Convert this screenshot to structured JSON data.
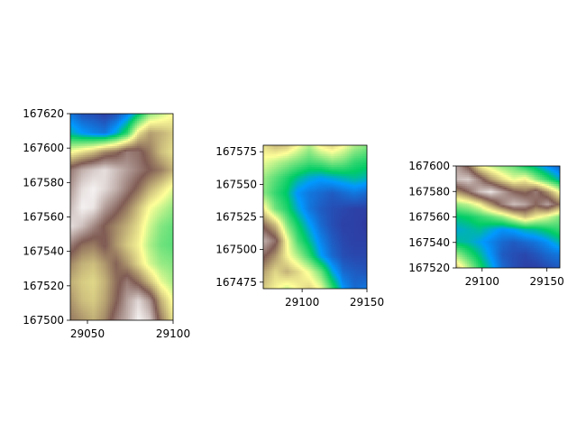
{
  "figure": {
    "background": "#ffffff",
    "colormap": "terrain"
  },
  "chart_data": [
    {
      "type": "heatmap",
      "name": "panel-1",
      "xlim": [
        29040,
        29100
      ],
      "ylim": [
        167500,
        167620
      ],
      "x_ticks": [
        29050,
        29100
      ],
      "x_tick_labels": [
        "29050",
        "29100"
      ],
      "y_ticks": [
        167500,
        167520,
        167540,
        167560,
        167580,
        167600,
        167620
      ],
      "y_tick_labels": [
        "167500",
        "167520",
        "167540",
        "167560",
        "167580",
        "167600",
        "167620"
      ],
      "grid": [
        [
          0.1,
          0.05,
          0.04,
          0.02,
          0.05,
          0.12,
          0.25,
          0.4,
          0.45,
          0.5
        ],
        [
          0.2,
          0.15,
          0.12,
          0.1,
          0.18,
          0.3,
          0.55,
          0.65,
          0.62,
          0.58
        ],
        [
          0.5,
          0.55,
          0.6,
          0.68,
          0.72,
          0.8,
          0.78,
          0.7,
          0.6,
          0.55
        ],
        [
          0.8,
          0.88,
          0.92,
          0.95,
          0.9,
          0.85,
          0.8,
          0.75,
          0.7,
          0.62
        ],
        [
          0.85,
          0.95,
          0.98,
          0.94,
          0.88,
          0.8,
          0.72,
          0.62,
          0.55,
          0.48
        ],
        [
          0.9,
          0.98,
          0.96,
          0.85,
          0.78,
          0.7,
          0.6,
          0.5,
          0.45,
          0.4
        ],
        [
          0.95,
          0.9,
          0.82,
          0.74,
          0.68,
          0.62,
          0.55,
          0.45,
          0.38,
          0.35
        ],
        [
          0.8,
          0.72,
          0.7,
          0.76,
          0.66,
          0.58,
          0.52,
          0.42,
          0.36,
          0.34
        ],
        [
          0.68,
          0.62,
          0.6,
          0.66,
          0.74,
          0.66,
          0.56,
          0.46,
          0.4,
          0.38
        ],
        [
          0.62,
          0.58,
          0.56,
          0.62,
          0.72,
          0.8,
          0.72,
          0.6,
          0.48,
          0.42
        ],
        [
          0.66,
          0.6,
          0.58,
          0.64,
          0.74,
          0.86,
          0.94,
          0.84,
          0.62,
          0.5
        ],
        [
          0.7,
          0.66,
          0.62,
          0.68,
          0.8,
          0.88,
          0.98,
          0.92,
          0.7,
          0.55
        ]
      ]
    },
    {
      "type": "heatmap",
      "name": "panel-2",
      "xlim": [
        29070,
        29150
      ],
      "ylim": [
        167470,
        167580
      ],
      "x_ticks": [
        29100,
        29150
      ],
      "x_tick_labels": [
        "29100",
        "29150"
      ],
      "y_ticks": [
        167475,
        167500,
        167525,
        167550,
        167575
      ],
      "y_tick_labels": [
        "167475",
        "167500",
        "167525",
        "167550",
        "167575"
      ],
      "grid": [
        [
          0.55,
          0.6,
          0.58,
          0.5,
          0.42,
          0.52,
          0.56,
          0.5,
          0.42,
          0.38
        ],
        [
          0.48,
          0.44,
          0.4,
          0.36,
          0.32,
          0.34,
          0.38,
          0.36,
          0.3,
          0.28
        ],
        [
          0.4,
          0.34,
          0.28,
          0.22,
          0.18,
          0.16,
          0.18,
          0.2,
          0.22,
          0.2
        ],
        [
          0.38,
          0.3,
          0.24,
          0.14,
          0.1,
          0.08,
          0.06,
          0.08,
          0.1,
          0.08
        ],
        [
          0.52,
          0.36,
          0.28,
          0.18,
          0.1,
          0.06,
          0.04,
          0.03,
          0.02,
          0.02
        ],
        [
          0.72,
          0.6,
          0.38,
          0.26,
          0.16,
          0.08,
          0.04,
          0.02,
          0.02,
          0.01
        ],
        [
          0.88,
          0.78,
          0.5,
          0.32,
          0.22,
          0.12,
          0.06,
          0.03,
          0.02,
          0.02
        ],
        [
          0.76,
          0.66,
          0.52,
          0.42,
          0.3,
          0.16,
          0.08,
          0.04,
          0.03,
          0.03
        ],
        [
          0.64,
          0.56,
          0.62,
          0.56,
          0.48,
          0.36,
          0.18,
          0.08,
          0.06,
          0.05
        ],
        [
          0.58,
          0.52,
          0.46,
          0.52,
          0.56,
          0.48,
          0.3,
          0.14,
          0.08,
          0.1
        ]
      ]
    },
    {
      "type": "heatmap",
      "name": "panel-3",
      "xlim": [
        29080,
        29160
      ],
      "ylim": [
        167520,
        167600
      ],
      "x_ticks": [
        29100,
        29150
      ],
      "x_tick_labels": [
        "29100",
        "29150"
      ],
      "y_ticks": [
        167520,
        167540,
        167560,
        167580,
        167600
      ],
      "y_tick_labels": [
        "167520",
        "167540",
        "167560",
        "167580",
        "167600"
      ],
      "grid": [
        [
          0.86,
          0.74,
          0.54,
          0.46,
          0.4,
          0.36,
          0.28,
          0.22,
          0.14,
          0.08
        ],
        [
          0.9,
          0.92,
          0.8,
          0.66,
          0.56,
          0.48,
          0.52,
          0.4,
          0.3,
          0.2
        ],
        [
          0.66,
          0.76,
          0.9,
          0.96,
          0.86,
          0.76,
          0.72,
          0.8,
          0.66,
          0.5
        ],
        [
          0.4,
          0.44,
          0.52,
          0.66,
          0.8,
          0.9,
          0.86,
          0.76,
          0.86,
          0.72
        ],
        [
          0.24,
          0.26,
          0.3,
          0.34,
          0.4,
          0.5,
          0.6,
          0.52,
          0.46,
          0.38
        ],
        [
          0.18,
          0.2,
          0.22,
          0.18,
          0.14,
          0.16,
          0.2,
          0.22,
          0.26,
          0.3
        ],
        [
          0.22,
          0.2,
          0.16,
          0.12,
          0.08,
          0.06,
          0.08,
          0.1,
          0.14,
          0.2
        ],
        [
          0.4,
          0.3,
          0.22,
          0.14,
          0.06,
          0.04,
          0.03,
          0.05,
          0.08,
          0.1
        ],
        [
          0.56,
          0.42,
          0.28,
          0.18,
          0.08,
          0.04,
          0.02,
          0.02,
          0.04,
          0.06
        ]
      ]
    }
  ]
}
